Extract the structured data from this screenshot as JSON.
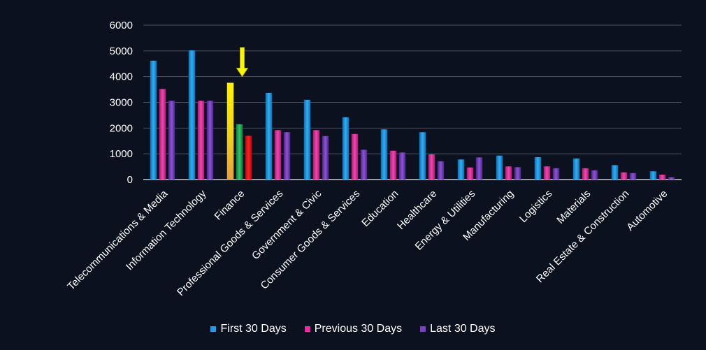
{
  "chart_data": {
    "type": "bar",
    "title": "",
    "xlabel": "",
    "ylabel": "",
    "ylim": [
      0,
      6000
    ],
    "yticks": [
      0,
      1000,
      2000,
      3000,
      4000,
      5000,
      6000
    ],
    "grid": true,
    "legend_position": "bottom",
    "categories": [
      "Telecommunications & Media",
      "Information Technology",
      "Finance",
      "Professional Goods & Services",
      "Government & Civic",
      "Consumer Goods &  Services",
      "Education",
      "Healthcare",
      "Energy & Utilities",
      "Manufacturing",
      "Logistics",
      "Materials",
      "Real Estate & Construction",
      "Automotive"
    ],
    "series": [
      {
        "name": "First 30 Days",
        "color": "#1e9be8",
        "values": [
          4620,
          5020,
          3760,
          3370,
          3100,
          2420,
          1950,
          1840,
          780,
          930,
          870,
          820,
          560,
          320
        ]
      },
      {
        "name": "Previous 30 Days",
        "color": "#e82da0",
        "values": [
          3520,
          3060,
          2150,
          1920,
          1920,
          1770,
          1120,
          980,
          470,
          510,
          510,
          440,
          280,
          190
        ]
      },
      {
        "name": "Last 30 Days",
        "color": "#7b3fc4",
        "values": [
          3060,
          3060,
          1700,
          1840,
          1690,
          1160,
          1050,
          710,
          860,
          480,
          440,
          360,
          250,
          90
        ]
      }
    ],
    "highlight": {
      "category": "Finance",
      "colors": [
        "#f2ec00",
        "#1ea653",
        "#e60e0e"
      ],
      "arrow_color": "#f8f500"
    }
  }
}
